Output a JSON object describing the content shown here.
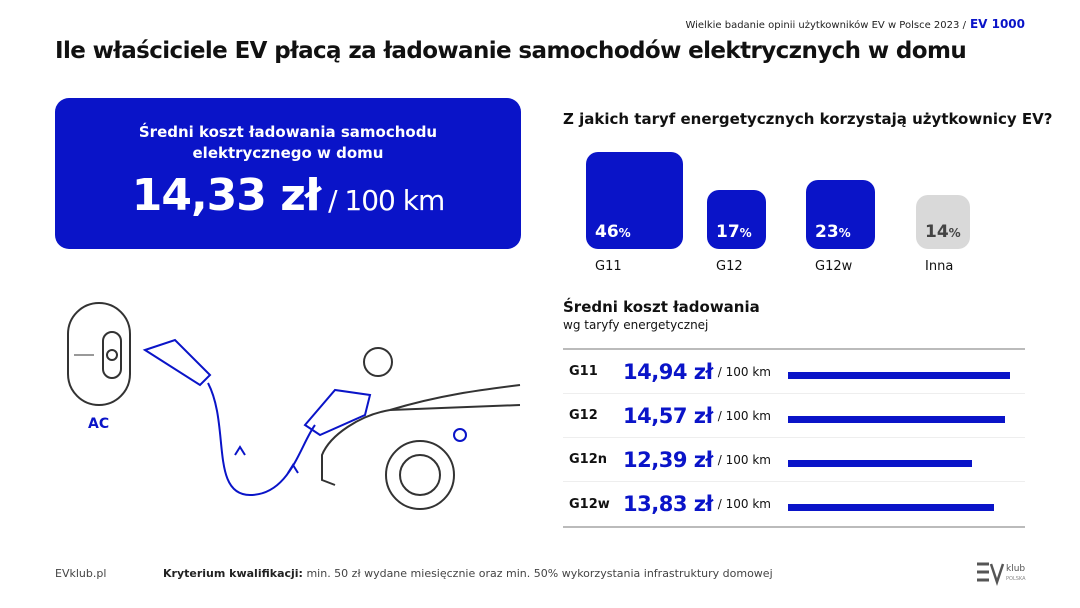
{
  "header": {
    "survey": "Wielkie badanie opinii użytkowników EV w Polsce 2023",
    "separator": "/",
    "brand": "EV 1000",
    "title": "Ile właściciele EV płacą za ładowanie samochodów elektrycznych w domu"
  },
  "card": {
    "subtitle_line1": "Średni koszt ładowania samochodu",
    "subtitle_line2": "elektrycznego w domu",
    "value": "14,33 zł",
    "unit": " / 100 km"
  },
  "illustration": {
    "label": "AC"
  },
  "tariffs": {
    "question": "Z jakich taryf energetycznych korzystają użytkownicy EV?",
    "items": [
      {
        "name": "G11",
        "percent": 46,
        "color": "#0a14c8"
      },
      {
        "name": "G12",
        "percent": 17,
        "color": "#0a14c8"
      },
      {
        "name": "G12w",
        "percent": 23,
        "color": "#0a14c8"
      },
      {
        "name": "Inna",
        "percent": 14,
        "color": "#d9d9d9"
      }
    ]
  },
  "costs": {
    "title": "Średni koszt ładowania",
    "subtitle": "wg taryfy energetycznej",
    "unit": "/ 100 km",
    "rows": [
      {
        "tariff": "G11",
        "value": 14.94,
        "label": "14,94 zł"
      },
      {
        "tariff": "G12",
        "value": 14.57,
        "label": "14,57 zł"
      },
      {
        "tariff": "G12n",
        "value": 12.39,
        "label": "12,39 zł"
      },
      {
        "tariff": "G12w",
        "value": 13.83,
        "label": "13,83 zł"
      }
    ]
  },
  "footer": {
    "site": "EVklub.pl",
    "criteria_label": "Kryterium kwalifikacji:",
    "criteria_text": " min. 50 zł wydane miesięcznie oraz min. 50% wykorzystania infrastruktury domowej",
    "logo": "EV klub POLSKA"
  },
  "colors": {
    "accent": "#0a14c8",
    "other": "#d9d9d9"
  }
}
